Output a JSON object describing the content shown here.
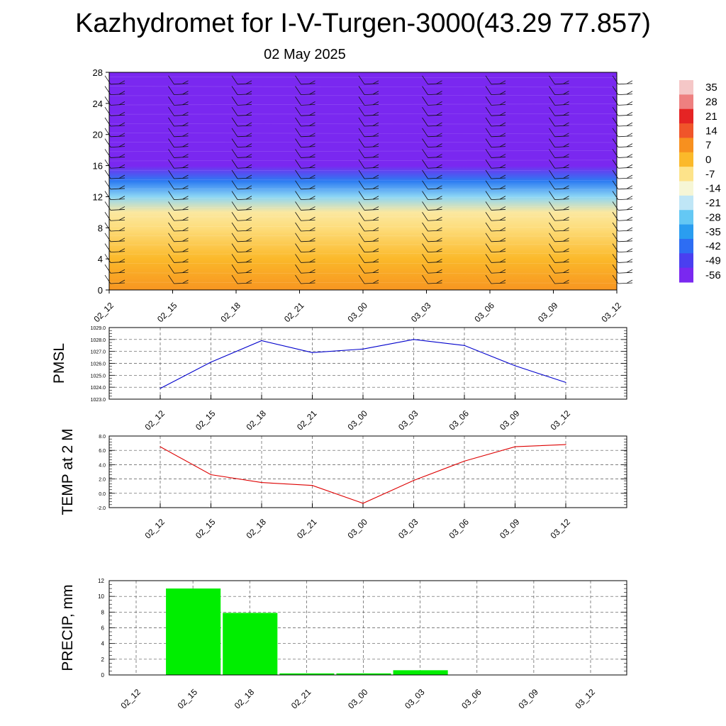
{
  "title": "Kazhydromet for I-V-Turgen-3000(43.29 77.857)",
  "subtitle": "02 May 2025",
  "colorbar": {
    "labels": [
      "35",
      "28",
      "21",
      "14",
      "7",
      "0",
      "-7",
      "-14",
      "-21",
      "-28",
      "-35",
      "-42",
      "-49",
      "-56"
    ],
    "colors": [
      "#f5c7c7",
      "#ee8080",
      "#e52424",
      "#f0552a",
      "#f7901f",
      "#fbb92a",
      "#fde38a",
      "#f6f6d6",
      "#bfe6f6",
      "#64c8f4",
      "#2a9df0",
      "#2d6df3",
      "#4a3ff0",
      "#7a28f0"
    ]
  },
  "chart_data": [
    {
      "type": "heatmap",
      "ylim": [
        0,
        28
      ],
      "yticks": [
        "0",
        "4",
        "8",
        "12",
        "16",
        "20",
        "24",
        "28"
      ],
      "xticks": [
        "02_12",
        "02_15",
        "02_18",
        "02_21",
        "03_00",
        "03_03",
        "03_06",
        "03_09",
        "03_12"
      ],
      "y": [
        0,
        2,
        4,
        6,
        8,
        10,
        12,
        14,
        16,
        18,
        20,
        22,
        24,
        26,
        28
      ],
      "values": [
        6,
        3,
        0,
        -3,
        -6,
        -9,
        -25,
        -40,
        -56,
        -58,
        -58,
        -57,
        -58,
        -58,
        -58
      ],
      "note_series": "wind barbs at each time step"
    },
    {
      "type": "line",
      "ylabel": "PMSL",
      "x": [
        "02_12",
        "02_15",
        "02_18",
        "02_21",
        "03_00",
        "03_03",
        "03_06",
        "03_09",
        "03_12"
      ],
      "values": [
        1023.9,
        1026.1,
        1027.9,
        1026.9,
        1027.2,
        1028.0,
        1027.5,
        1025.8,
        1024.4
      ],
      "ylim": [
        1023.0,
        1029.0
      ],
      "yticks": [
        "1023.0",
        "1024.0",
        "1025.0",
        "1026.0",
        "1027.0",
        "1028.0",
        "1029.0"
      ],
      "color": "#0000cc"
    },
    {
      "type": "line",
      "ylabel": "TEMP at 2 M",
      "x": [
        "02_12",
        "02_15",
        "02_18",
        "02_21",
        "03_00",
        "03_03",
        "03_06",
        "03_09",
        "03_12"
      ],
      "values": [
        6.5,
        2.6,
        1.5,
        1.1,
        -1.4,
        1.8,
        4.5,
        6.5,
        6.8
      ],
      "ylim": [
        -2.0,
        8.0
      ],
      "yticks": [
        "-2.0",
        "0.0",
        "2.0",
        "4.0",
        "6.0",
        "8.0"
      ],
      "color": "#dd0000"
    },
    {
      "type": "bar",
      "ylabel": "PRECIP, mm",
      "categories": [
        "02_12",
        "02_15",
        "02_18",
        "02_21",
        "03_00",
        "03_03",
        "03_06",
        "03_09",
        "03_12"
      ],
      "values": [
        0,
        11.0,
        7.9,
        0.2,
        0.2,
        0.6,
        0,
        0,
        0
      ],
      "ylim": [
        0,
        12
      ],
      "yticks": [
        "0",
        "2",
        "4",
        "6",
        "8",
        "10",
        "12"
      ],
      "color": "#00ee00"
    }
  ]
}
